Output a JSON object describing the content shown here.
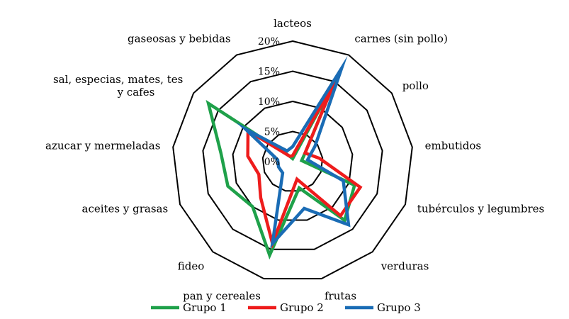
{
  "chart_data": {
    "type": "radar",
    "categories": [
      "lacteos",
      "carnes (sin pollo)",
      "pollo",
      "embutidos",
      "tubérculos y legumbres",
      "verduras",
      "frutas",
      "pan y cereales",
      "fideo",
      "aceites y grasas",
      "azucar y mermeladas",
      "sal, especias, mates, tes y cafes",
      "gaseosas y bebidas"
    ],
    "category_lines": [
      [
        "lacteos"
      ],
      [
        "carnes (sin pollo)"
      ],
      [
        "pollo"
      ],
      [
        "embutidos"
      ],
      [
        "tubérculos y legumbres"
      ],
      [
        "verduras"
      ],
      [
        "frutas"
      ],
      [
        "pan y cereales"
      ],
      [
        "fideo"
      ],
      [
        "aceites y grasas"
      ],
      [
        "azucar y mermeladas"
      ],
      [
        "sal, especias, mates, tes",
        "y cafes"
      ],
      [
        "gaseosas y bebidas"
      ]
    ],
    "rlim": [
      0,
      20
    ],
    "ticks": [
      0,
      5,
      10,
      15,
      20
    ],
    "tick_labels": [
      "0%",
      "5%",
      "10%",
      "15%",
      "20%"
    ],
    "grid": true,
    "legend_position": "bottom",
    "series": [
      {
        "name": "Grupo 1",
        "color": "#1fa14a",
        "values": [
          0.5,
          15,
          2.5,
          1.5,
          11,
          13,
          4.5,
          16,
          10,
          11.5,
          12,
          17,
          1
        ]
      },
      {
        "name": "Grupo 2",
        "color": "#ee1c1c",
        "values": [
          1,
          15,
          2.5,
          4.5,
          12,
          12,
          3,
          14,
          8,
          6,
          7.5,
          9,
          1
        ]
      },
      {
        "name": "Grupo 3",
        "color": "#1a6cb5",
        "values": [
          2.5,
          17.5,
          4.5,
          2.5,
          9,
          14,
          8,
          14,
          2.5,
          2.5,
          2.5,
          9.5,
          2
        ]
      }
    ]
  }
}
